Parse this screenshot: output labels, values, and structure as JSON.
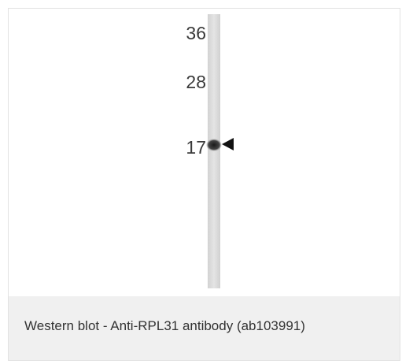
{
  "blot": {
    "markers": [
      36,
      28,
      17
    ]
  },
  "caption": "Western blot - Anti-RPL31 antibody (ab103991)"
}
